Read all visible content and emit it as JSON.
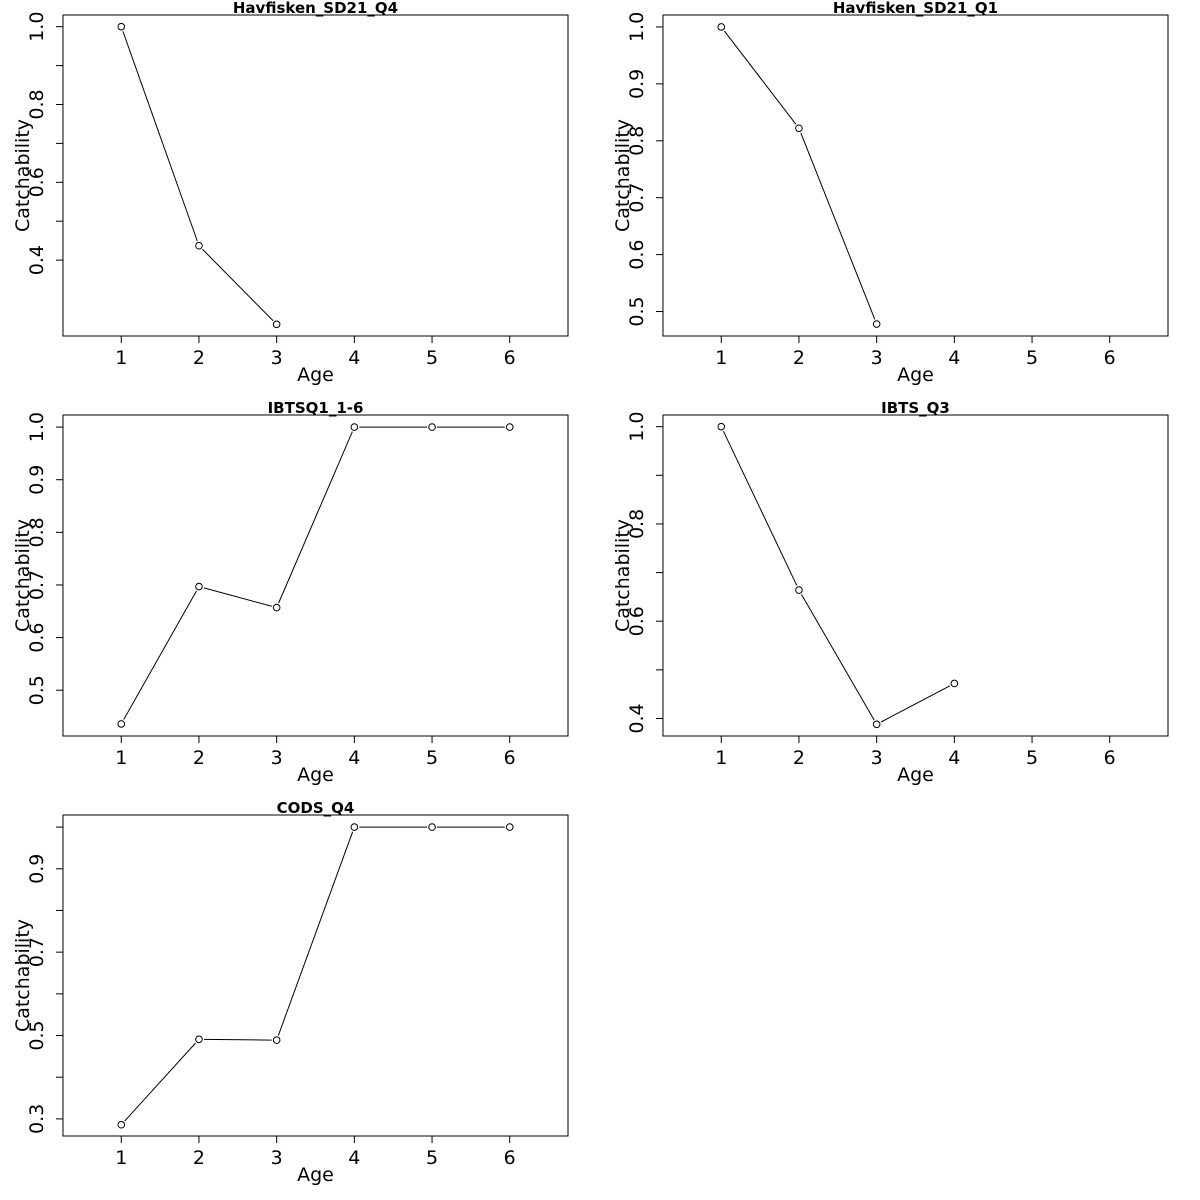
{
  "chart_data": [
    {
      "type": "line",
      "title": "Havfisken_SD21_Q4",
      "xlabel": "Age",
      "ylabel": "Catchability",
      "x": [
        1,
        2,
        3
      ],
      "y": [
        1.0,
        0.437,
        0.235
      ],
      "xlim": [
        0.25,
        6.75
      ],
      "ylim": [
        0.205,
        1.03
      ],
      "xticks": [
        "1",
        "2",
        "3",
        "4",
        "5",
        "6"
      ],
      "yticks": [
        0.4,
        0.6,
        0.8,
        1.0
      ],
      "yticklabels": [
        "0.4",
        "0.6",
        "0.8",
        "1.0"
      ],
      "yminor": [
        0.5,
        0.7,
        0.9
      ]
    },
    {
      "type": "line",
      "title": "Havfisken_SD21_Q1",
      "xlabel": "Age",
      "ylabel": "Catchability",
      "x": [
        1,
        2,
        3
      ],
      "y": [
        1.0,
        0.822,
        0.478
      ],
      "xlim": [
        0.25,
        6.75
      ],
      "ylim": [
        0.457,
        1.021
      ],
      "xticks": [
        "1",
        "2",
        "3",
        "4",
        "5",
        "6"
      ],
      "yticks": [
        0.5,
        0.6,
        0.7,
        0.8,
        0.9,
        1.0
      ],
      "yticklabels": [
        "0.5",
        "0.6",
        "0.7",
        "0.8",
        "0.9",
        "1.0"
      ],
      "yminor": []
    },
    {
      "type": "line",
      "title": "IBTSQ1_1-6",
      "xlabel": "Age",
      "ylabel": "Catchability",
      "x": [
        1,
        2,
        3,
        4,
        5,
        6
      ],
      "y": [
        0.436,
        0.697,
        0.657,
        1.0,
        1.0,
        1.0
      ],
      "xlim": [
        0.25,
        6.75
      ],
      "ylim": [
        0.413,
        1.023
      ],
      "xticks": [
        "1",
        "2",
        "3",
        "4",
        "5",
        "6"
      ],
      "yticks": [
        0.5,
        0.6,
        0.7,
        0.8,
        0.9,
        1.0
      ],
      "yticklabels": [
        "0.5",
        "0.6",
        "0.7",
        "0.8",
        "0.9",
        "1.0"
      ],
      "yminor": []
    },
    {
      "type": "line",
      "title": "IBTS_Q3",
      "xlabel": "Age",
      "ylabel": "Catchability",
      "x": [
        1,
        2,
        3,
        4
      ],
      "y": [
        1.0,
        0.664,
        0.388,
        0.472
      ],
      "xlim": [
        0.25,
        6.75
      ],
      "ylim": [
        0.364,
        1.024
      ],
      "xticks": [
        "1",
        "2",
        "3",
        "4",
        "5",
        "6"
      ],
      "yticks": [
        0.4,
        0.6,
        0.8,
        1.0
      ],
      "yticklabels": [
        "0.4",
        "0.6",
        "0.8",
        "1.0"
      ],
      "yminor": [
        0.5,
        0.7,
        0.9
      ]
    },
    {
      "type": "line",
      "title": "CODS_Q4",
      "xlabel": "Age",
      "ylabel": "Catchability",
      "x": [
        1,
        2,
        3,
        4,
        5,
        6
      ],
      "y": [
        0.286,
        0.491,
        0.489,
        1.0,
        1.0,
        1.0
      ],
      "xlim": [
        0.25,
        6.75
      ],
      "ylim": [
        0.259,
        1.029
      ],
      "xticks": [
        "1",
        "2",
        "3",
        "4",
        "5",
        "6"
      ],
      "yticks": [
        0.3,
        0.5,
        0.7,
        0.9
      ],
      "yticklabels": [
        "0.3",
        "0.5",
        "0.7",
        "0.9"
      ],
      "yminor": [
        0.4,
        0.6,
        0.8,
        1.0
      ]
    }
  ]
}
